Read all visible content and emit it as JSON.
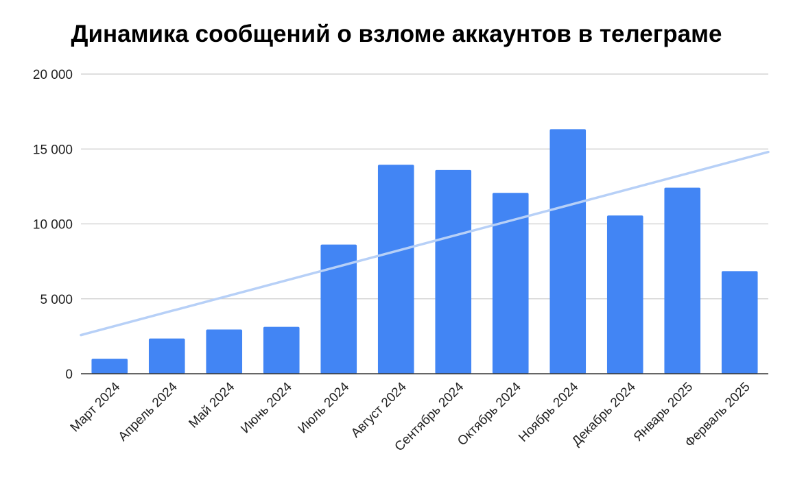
{
  "chart_data": {
    "type": "bar",
    "title": "Динамика сообщений о взломе аккаунтов в телеграме",
    "xlabel": "",
    "ylabel": "",
    "categories": [
      "Март 2024",
      "Апрель 2024",
      "Май 2024",
      "Июнь 2024",
      "Июль 2024",
      "Август 2024",
      "Сентябрь 2024",
      "Октябрь 2024",
      "Ноябрь 2024",
      "Декабрь 2024",
      "Январь 2025",
      "Ферваль 2025"
    ],
    "values": [
      1000,
      2350,
      2950,
      3130,
      8620,
      13950,
      13600,
      12070,
      16320,
      10560,
      12420,
      6850
    ],
    "ylim": [
      0,
      20000
    ],
    "yticks": [
      0,
      5000,
      10000,
      15000,
      20000
    ],
    "ytick_labels": [
      "0",
      "5 000",
      "10 000",
      "15 000",
      "20 000"
    ],
    "grid": true,
    "trendline": {
      "start": 2580,
      "end": 14800
    },
    "colors": {
      "bar": "#4285f4",
      "trendline": "#b7d0f7",
      "grid": "#cccccc",
      "axis": "#333333"
    }
  }
}
